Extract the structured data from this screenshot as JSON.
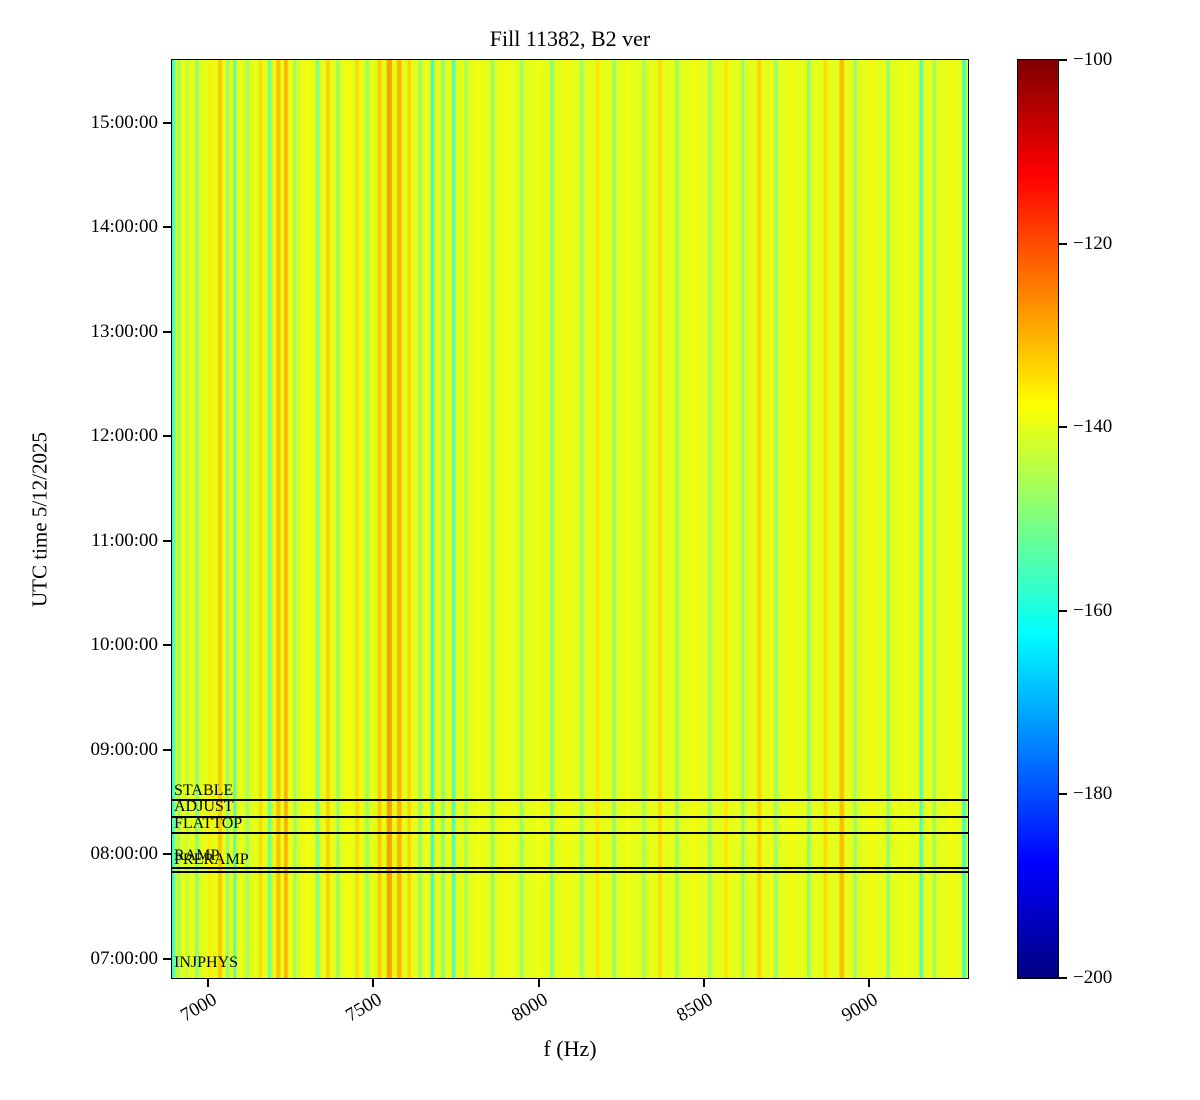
{
  "chart_data": {
    "type": "heatmap",
    "title": "Fill 11382, B2 ver",
    "xlabel": "f (Hz)",
    "ylabel": "UTC time 5/12/2025",
    "x_range": [
      6890,
      9300
    ],
    "x_ticks": [
      7000,
      7500,
      8000,
      8500,
      9000
    ],
    "y_axis_time_range_hours": [
      6.8167,
      15.6
    ],
    "y_ticks": [
      "15:00:00",
      "14:00:00",
      "13:00:00",
      "12:00:00",
      "11:00:00",
      "10:00:00",
      "09:00:00",
      "08:00:00",
      "07:00:00"
    ],
    "y_tick_hours": [
      15,
      14,
      13,
      12,
      11,
      10,
      9,
      8,
      7
    ],
    "colorbar": {
      "min": -200,
      "max": -100,
      "tick_labels": [
        "−100",
        "−120",
        "−140",
        "−160",
        "−180",
        "−200"
      ],
      "tick_values": [
        -100,
        -120,
        -140,
        -160,
        -180,
        -200
      ],
      "colormap": "jet"
    },
    "base_value_db": -140,
    "stripe_format": [
      "f_hz",
      "width_hz",
      "value_db"
    ],
    "stripes": [
      [
        6893,
        10,
        -157
      ],
      [
        6910,
        8,
        -149
      ],
      [
        6935,
        8,
        -144
      ],
      [
        6965,
        10,
        -150
      ],
      [
        7005,
        10,
        -136
      ],
      [
        7035,
        12,
        -132
      ],
      [
        7058,
        8,
        -149
      ],
      [
        7080,
        8,
        -156
      ],
      [
        7118,
        10,
        -147
      ],
      [
        7158,
        10,
        -134
      ],
      [
        7185,
        8,
        -154
      ],
      [
        7212,
        12,
        -131
      ],
      [
        7235,
        10,
        -129
      ],
      [
        7262,
        10,
        -148
      ],
      [
        7298,
        10,
        -138
      ],
      [
        7330,
        10,
        -150
      ],
      [
        7362,
        12,
        -133
      ],
      [
        7392,
        8,
        -149
      ],
      [
        7420,
        10,
        -137
      ],
      [
        7450,
        12,
        -134
      ],
      [
        7480,
        10,
        -148
      ],
      [
        7518,
        12,
        -132
      ],
      [
        7548,
        16,
        -128
      ],
      [
        7578,
        14,
        -130
      ],
      [
        7608,
        10,
        -133
      ],
      [
        7640,
        10,
        -148
      ],
      [
        7678,
        10,
        -157
      ],
      [
        7710,
        10,
        -150
      ],
      [
        7742,
        10,
        -155
      ],
      [
        7780,
        10,
        -147
      ],
      [
        7820,
        10,
        -138
      ],
      [
        7860,
        10,
        -149
      ],
      [
        7900,
        10,
        -137
      ],
      [
        7948,
        10,
        -148
      ],
      [
        7998,
        10,
        -138
      ],
      [
        8040,
        10,
        -150
      ],
      [
        8088,
        10,
        -137
      ],
      [
        8130,
        10,
        -148
      ],
      [
        8178,
        12,
        -135
      ],
      [
        8228,
        10,
        -149
      ],
      [
        8268,
        10,
        -138
      ],
      [
        8318,
        10,
        -147
      ],
      [
        8368,
        12,
        -134
      ],
      [
        8418,
        10,
        -149
      ],
      [
        8468,
        10,
        -137
      ],
      [
        8518,
        10,
        -148
      ],
      [
        8568,
        12,
        -135
      ],
      [
        8618,
        10,
        -149
      ],
      [
        8668,
        12,
        -133
      ],
      [
        8718,
        10,
        -148
      ],
      [
        8768,
        10,
        -137
      ],
      [
        8818,
        10,
        -150
      ],
      [
        8868,
        12,
        -134
      ],
      [
        8918,
        14,
        -131
      ],
      [
        8958,
        10,
        -148
      ],
      [
        9008,
        10,
        -137
      ],
      [
        9058,
        10,
        -149
      ],
      [
        9108,
        10,
        -138
      ],
      [
        9158,
        10,
        -155
      ],
      [
        9198,
        10,
        -148
      ],
      [
        9248,
        10,
        -137
      ],
      [
        9288,
        12,
        -156
      ]
    ],
    "beam_modes": [
      {
        "label": "STABLE",
        "label_hour": 8.6,
        "line_hour": 8.52
      },
      {
        "label": "ADJUST",
        "label_hour": 8.44,
        "line_hour": 8.36
      },
      {
        "label": "FLATTOP",
        "label_hour": 8.28,
        "line_hour": 8.2
      },
      {
        "label": "RAMP",
        "label_hour": 7.97,
        "line_hour": 7.87
      },
      {
        "label": "PRERAMP",
        "label_hour": 7.94,
        "line_hour": 7.83
      },
      {
        "label": "INJPHYS",
        "label_hour": 6.95,
        "line_hour": null
      }
    ]
  }
}
